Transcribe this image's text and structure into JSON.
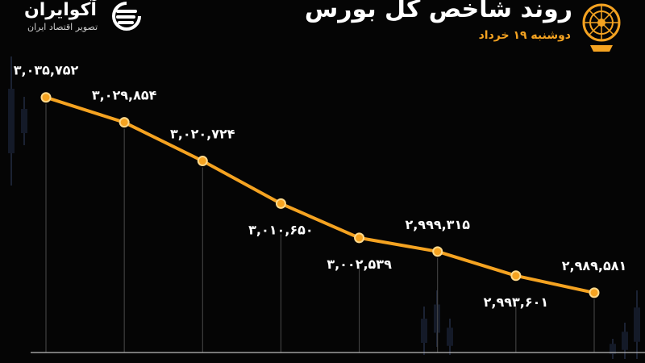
{
  "header": {
    "brand_name": "آکوایران",
    "brand_tagline": "تصویر اقتصاد ایران",
    "title": "روند شاخص کل بورس",
    "date": "دوشنبه ۱۹ خرداد"
  },
  "colors": {
    "background": "#050505",
    "line": "#f5a321",
    "point_fill": "#f5a321",
    "point_stroke": "#ffd98a",
    "label": "#ffffff",
    "accent_text": "#f5a321"
  },
  "chart_data": {
    "type": "line",
    "title": "روند شاخص کل بورس",
    "subtitle": "دوشنبه ۱۹ خرداد",
    "xlabel": "",
    "ylabel": "",
    "ylim": [
      2960000,
      3050000
    ],
    "grid": false,
    "legend": "none",
    "series": [
      {
        "values": [
          3035752,
          3029854,
          3020724,
          3010650,
          3002539,
          2999315,
          2993601,
          2989581
        ],
        "labels": [
          "۳,۰۳۵,۷۵۲",
          "۳,۰۲۹,۸۵۴",
          "۳,۰۲۰,۷۲۴",
          "۳,۰۱۰,۶۵۰",
          "۳,۰۰۲,۵۳۹",
          "۲,۹۹۹,۳۱۵",
          "۲,۹۹۳,۶۰۱",
          "۲,۹۸۹,۵۸۱"
        ]
      }
    ]
  }
}
